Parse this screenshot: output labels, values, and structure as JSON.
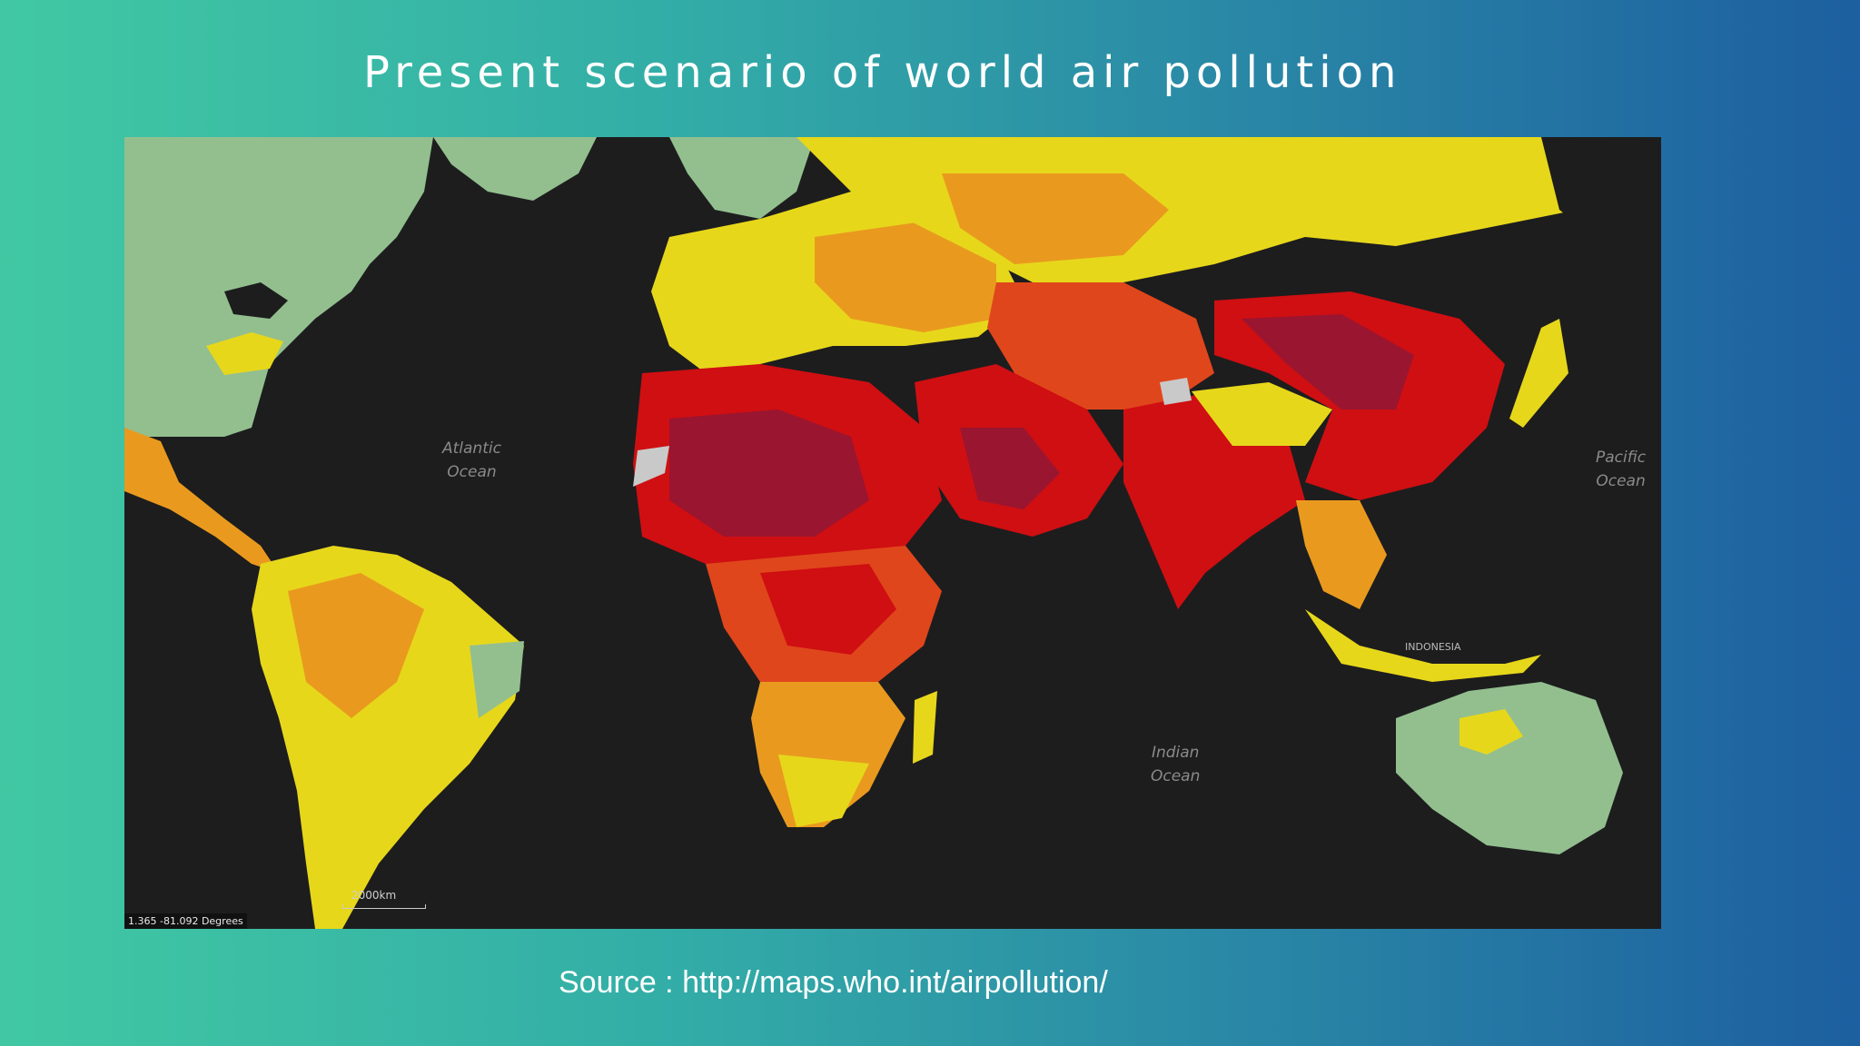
{
  "slide": {
    "title": "Present scenario of world air pollution",
    "source": "Source : http://maps.who.int/airpollution/"
  },
  "map": {
    "ocean_labels": {
      "atlantic": "Atlantic\nOcean",
      "pacific": "Pacific\nOcean",
      "indian": "Indian\nOcean"
    },
    "scale_text": "2000km",
    "coordinate_readout": "1.365 -81.092 Degrees",
    "country_label": "INDONESIA",
    "colors": {
      "ocean": "#1d1d1e",
      "low": "#93bf8f",
      "moderate": "#e7d71b",
      "elevated": "#e99a1e",
      "high": "#e0461c",
      "very_high": "#cf0f12",
      "extreme": "#9a1530",
      "no_data": "#c9c9c9"
    }
  }
}
